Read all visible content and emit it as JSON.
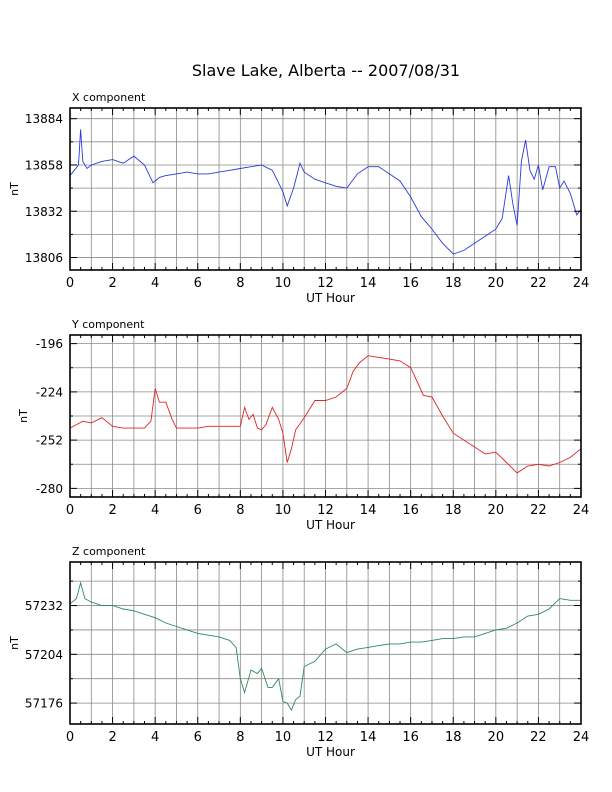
{
  "title": "Slave Lake, Alberta -- 2007/08/31",
  "chart_data": [
    {
      "type": "line",
      "panel_label": "X component",
      "ylabel": "nT",
      "xlabel": "UT Hour",
      "xlim": [
        0,
        24
      ],
      "ylim": [
        13799,
        13890
      ],
      "yticks": [
        13806,
        13832,
        13858,
        13884
      ],
      "xticks": [
        0,
        2,
        4,
        6,
        8,
        10,
        12,
        14,
        16,
        18,
        20,
        22,
        24
      ],
      "grid": true,
      "color": "#2a3bd8",
      "series": [
        {
          "x": [
            0,
            0.2,
            0.4,
            0.5,
            0.6,
            0.8,
            1.0,
            1.5,
            2.0,
            2.5,
            3.0,
            3.5,
            3.9,
            4.0,
            4.2,
            4.5,
            5.0,
            5.5,
            6.0,
            6.5,
            7.0,
            7.5,
            8.0,
            8.5,
            9.0,
            9.5,
            10.0,
            10.2,
            10.5,
            10.8,
            11.0,
            11.5,
            12.0,
            12.5,
            13.0,
            13.5,
            14.0,
            14.5,
            15.0,
            15.5,
            16.0,
            16.5,
            17.0,
            17.5,
            18.0,
            18.5,
            19.0,
            19.5,
            20.0,
            20.3,
            20.6,
            20.8,
            21.0,
            21.2,
            21.4,
            21.6,
            21.8,
            22.0,
            22.2,
            22.5,
            22.8,
            23.0,
            23.2,
            23.5,
            23.8,
            24.0
          ],
          "y": [
            13852,
            13855,
            13858,
            13878,
            13860,
            13856,
            13858,
            13860,
            13861,
            13859,
            13863,
            13858,
            13848,
            13849,
            13851,
            13852,
            13853,
            13854,
            13853,
            13853,
            13854,
            13855,
            13856,
            13857,
            13858,
            13855,
            13843,
            13835,
            13845,
            13859,
            13854,
            13850,
            13848,
            13846,
            13845,
            13853,
            13857,
            13857,
            13853,
            13849,
            13840,
            13829,
            13822,
            13814,
            13808,
            13810,
            13814,
            13818,
            13822,
            13828,
            13852,
            13836,
            13824,
            13860,
            13872,
            13855,
            13850,
            13858,
            13844,
            13857,
            13857,
            13845,
            13849,
            13842,
            13830,
            13833
          ]
        }
      ]
    },
    {
      "type": "line",
      "panel_label": "Y component",
      "ylabel": "nT",
      "xlabel": "UT Hour",
      "xlim": [
        0,
        24
      ],
      "ylim": [
        -285,
        -191
      ],
      "yticks": [
        -280,
        -252,
        -224,
        -196
      ],
      "xticks": [
        0,
        2,
        4,
        6,
        8,
        10,
        12,
        14,
        16,
        18,
        20,
        22,
        24
      ],
      "grid": true,
      "color": "#e02424",
      "series": [
        {
          "x": [
            0,
            0.3,
            0.6,
            1.0,
            1.5,
            2.0,
            2.5,
            3.0,
            3.5,
            3.8,
            4.0,
            4.2,
            4.5,
            4.8,
            5.0,
            5.5,
            6.0,
            6.5,
            7.0,
            7.5,
            8.0,
            8.2,
            8.4,
            8.6,
            8.8,
            9.0,
            9.2,
            9.5,
            9.8,
            10.0,
            10.2,
            10.4,
            10.6,
            11.0,
            11.5,
            12.0,
            12.5,
            13.0,
            13.3,
            13.6,
            14.0,
            14.5,
            15.0,
            15.5,
            16.0,
            16.3,
            16.6,
            17.0,
            17.5,
            18.0,
            18.5,
            19.0,
            19.5,
            20.0,
            20.5,
            21.0,
            21.5,
            22.0,
            22.5,
            23.0,
            23.5,
            24.0
          ],
          "y": [
            -245,
            -243,
            -241,
            -242,
            -239,
            -244,
            -245,
            -245,
            -245,
            -241,
            -222,
            -230,
            -230,
            -240,
            -245,
            -245,
            -245,
            -244,
            -244,
            -244,
            -244,
            -233,
            -240,
            -237,
            -245,
            -246,
            -243,
            -233,
            -240,
            -248,
            -265,
            -257,
            -246,
            -239,
            -229,
            -229,
            -227,
            -222,
            -212,
            -207,
            -203,
            -204,
            -205,
            -206,
            -210,
            -218,
            -226,
            -227,
            -238,
            -248,
            -252,
            -256,
            -260,
            -259,
            -265,
            -271,
            -267,
            -266,
            -267,
            -265,
            -262,
            -257
          ]
        }
      ]
    },
    {
      "type": "line",
      "panel_label": "Z component",
      "ylabel": "nT",
      "xlabel": "UT Hour",
      "xlim": [
        0,
        24
      ],
      "ylim": [
        57164,
        57257
      ],
      "yticks": [
        57176,
        57204,
        57232
      ],
      "xticks": [
        0,
        2,
        4,
        6,
        8,
        10,
        12,
        14,
        16,
        18,
        20,
        22,
        24
      ],
      "grid": true,
      "color": "#2e8b57",
      "series": [
        {
          "x": [
            0,
            0.3,
            0.5,
            0.7,
            1.0,
            1.5,
            2.0,
            2.5,
            3.0,
            3.5,
            4.0,
            4.5,
            5.0,
            5.5,
            6.0,
            6.5,
            7.0,
            7.5,
            7.8,
            8.0,
            8.2,
            8.5,
            8.8,
            9.0,
            9.3,
            9.5,
            9.8,
            10.0,
            10.2,
            10.4,
            10.6,
            10.8,
            11.0,
            11.5,
            12.0,
            12.5,
            13.0,
            13.5,
            14.0,
            14.5,
            15.0,
            15.5,
            16.0,
            16.5,
            17.0,
            17.5,
            18.0,
            18.5,
            19.0,
            19.5,
            20.0,
            20.5,
            21.0,
            21.5,
            22.0,
            22.5,
            23.0,
            23.5,
            24.0
          ],
          "y": [
            57233,
            57236,
            57245,
            57236,
            57234,
            57232,
            57232,
            57230,
            57229,
            57227,
            57225,
            57222,
            57220,
            57218,
            57216,
            57215,
            57214,
            57212,
            57208,
            57190,
            57182,
            57195,
            57193,
            57196,
            57185,
            57185,
            57190,
            57177,
            57176,
            57172,
            57178,
            57180,
            57197,
            57200,
            57207,
            57210,
            57205,
            57207,
            57208,
            57209,
            57210,
            57210,
            57211,
            57211,
            57212,
            57213,
            57213,
            57214,
            57214,
            57216,
            57218,
            57219,
            57222,
            57226,
            57227,
            57230,
            57236,
            57235,
            57235
          ]
        }
      ]
    }
  ]
}
